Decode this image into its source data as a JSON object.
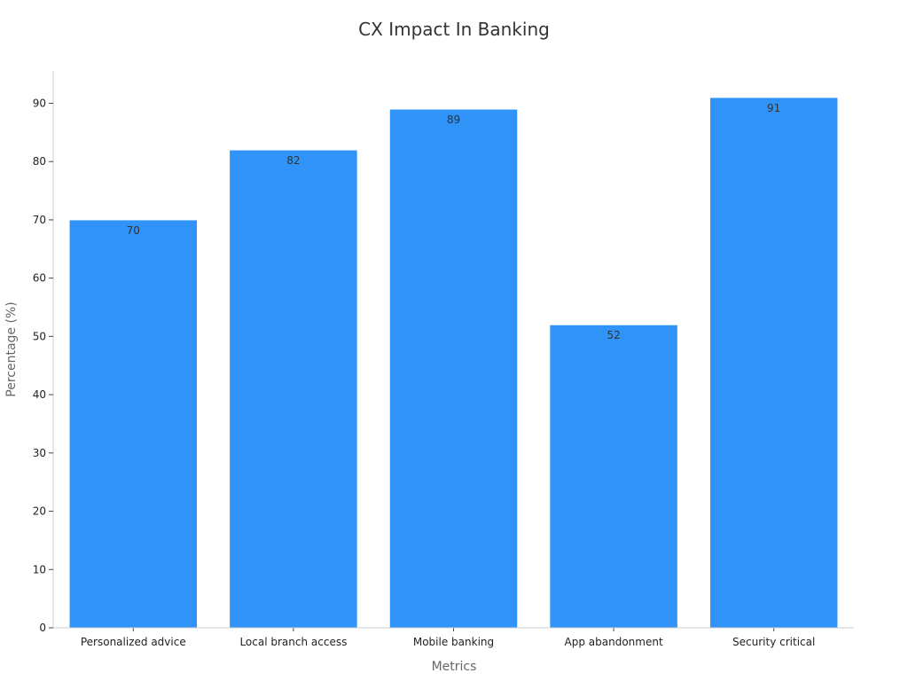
{
  "chart_data": {
    "type": "bar",
    "title": "CX Impact In Banking",
    "xlabel": "Metrics",
    "ylabel": "Percentage (%)",
    "categories": [
      "Personalized advice",
      "Local branch access",
      "Mobile banking",
      "App abandonment",
      "Security critical"
    ],
    "values": [
      70,
      82,
      89,
      52,
      91
    ],
    "ylim": [
      0,
      95.55
    ],
    "yticks": [
      0,
      10,
      20,
      30,
      40,
      50,
      60,
      70,
      80,
      90
    ],
    "bar_color": "#2f93f7",
    "grid": false,
    "legend": "none"
  }
}
